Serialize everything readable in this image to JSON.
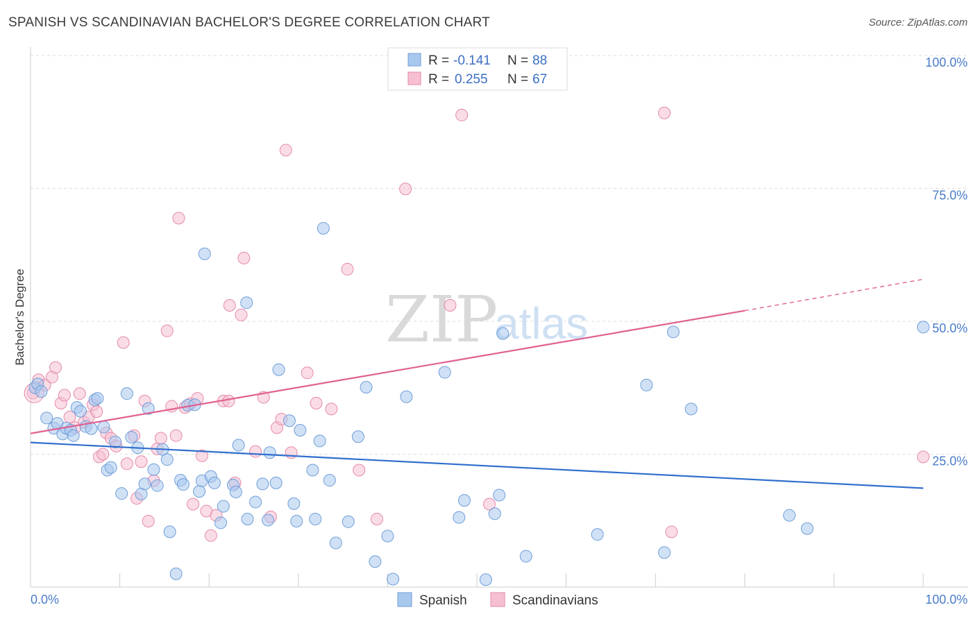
{
  "title": "SPANISH VS SCANDINAVIAN BACHELOR'S DEGREE CORRELATION CHART",
  "source": "Source: ZipAtlas.com",
  "colors": {
    "spanish_fill": "#a9c8ee",
    "spanish_stroke": "#6f9ed8",
    "spanish_line": "#2f6fce",
    "scand_fill": "#f6bfd2",
    "scand_stroke": "#e48aaa",
    "scand_line": "#e06090",
    "tick_text": "#4a7cc9",
    "grid": "#dcdcdc"
  },
  "legend": {
    "rows": [
      {
        "r_label": "R =",
        "r_value": "-0.141",
        "n_label": "N =",
        "n_value": "88"
      },
      {
        "r_label": "R =",
        "r_value": "0.255",
        "n_label": "N =",
        "n_value": "67"
      }
    ]
  },
  "watermark": {
    "zip": "ZIP",
    "atlas": "atlas"
  },
  "chart_data": {
    "type": "scatter",
    "xlabel": "",
    "ylabel": "Bachelor's Degree",
    "xlim": [
      0,
      100
    ],
    "ylim": [
      0,
      100
    ],
    "x_tick_labels": [
      "0.0%",
      "100.0%"
    ],
    "y_tick_labels": [
      "25.0%",
      "50.0%",
      "75.0%",
      "100.0%"
    ],
    "y_tick_values": [
      25,
      50,
      75,
      100
    ],
    "grid": true,
    "legend_position": "top-center",
    "series": [
      {
        "name": "Spanish",
        "trend": {
          "x0": 0,
          "y0": 27.2,
          "x1": 100,
          "y1": 18.6
        },
        "points": [
          [
            0.5,
            37.5
          ],
          [
            0.8,
            38.2
          ],
          [
            1.2,
            36.8
          ],
          [
            1.8,
            31.8
          ],
          [
            2.6,
            29.9
          ],
          [
            3.0,
            30.8
          ],
          [
            3.6,
            28.8
          ],
          [
            4.0,
            29.9
          ],
          [
            4.5,
            29.5
          ],
          [
            4.8,
            28.5
          ],
          [
            5.2,
            33.8
          ],
          [
            5.6,
            33.1
          ],
          [
            6.2,
            30.2
          ],
          [
            6.8,
            29.8
          ],
          [
            7.2,
            35.2
          ],
          [
            7.5,
            35.5
          ],
          [
            8.2,
            30.1
          ],
          [
            8.6,
            22.0
          ],
          [
            9.0,
            22.5
          ],
          [
            9.5,
            27.3
          ],
          [
            10.2,
            17.6
          ],
          [
            10.8,
            36.4
          ],
          [
            11.3,
            28.2
          ],
          [
            12.0,
            26.2
          ],
          [
            12.4,
            17.5
          ],
          [
            12.8,
            19.4
          ],
          [
            13.2,
            33.6
          ],
          [
            13.8,
            22.1
          ],
          [
            14.2,
            19.1
          ],
          [
            14.8,
            25.9
          ],
          [
            15.3,
            24.0
          ],
          [
            15.6,
            10.4
          ],
          [
            16.3,
            2.5
          ],
          [
            16.8,
            20.1
          ],
          [
            17.1,
            19.3
          ],
          [
            17.6,
            34.2
          ],
          [
            18.4,
            34.3
          ],
          [
            18.9,
            18.0
          ],
          [
            19.2,
            20.0
          ],
          [
            19.5,
            62.7
          ],
          [
            20.2,
            20.8
          ],
          [
            20.6,
            19.6
          ],
          [
            21.3,
            12.1
          ],
          [
            21.6,
            15.2
          ],
          [
            22.7,
            19.2
          ],
          [
            23.0,
            17.9
          ],
          [
            23.3,
            26.7
          ],
          [
            24.2,
            53.5
          ],
          [
            24.3,
            12.8
          ],
          [
            25.2,
            16.0
          ],
          [
            26.0,
            19.4
          ],
          [
            26.8,
            25.3
          ],
          [
            26.6,
            12.6
          ],
          [
            27.5,
            19.6
          ],
          [
            27.8,
            40.9
          ],
          [
            29.0,
            31.3
          ],
          [
            29.5,
            15.7
          ],
          [
            29.8,
            12.4
          ],
          [
            30.2,
            29.5
          ],
          [
            31.6,
            22.0
          ],
          [
            31.9,
            12.8
          ],
          [
            32.4,
            27.5
          ],
          [
            32.8,
            67.5
          ],
          [
            33.5,
            20.1
          ],
          [
            34.2,
            8.3
          ],
          [
            35.6,
            12.3
          ],
          [
            36.7,
            28.3
          ],
          [
            37.6,
            37.6
          ],
          [
            38.6,
            4.8
          ],
          [
            40.0,
            9.6
          ],
          [
            40.6,
            1.5
          ],
          [
            42.1,
            35.8
          ],
          [
            46.4,
            40.4
          ],
          [
            48.0,
            13.1
          ],
          [
            48.6,
            16.3
          ],
          [
            51.0,
            1.4
          ],
          [
            52.0,
            13.8
          ],
          [
            52.5,
            17.3
          ],
          [
            52.9,
            47.7
          ],
          [
            55.5,
            5.8
          ],
          [
            63.5,
            9.9
          ],
          [
            69.0,
            38.0
          ],
          [
            71.0,
            6.5
          ],
          [
            72.0,
            48.0
          ],
          [
            74.0,
            33.5
          ],
          [
            85.0,
            13.5
          ],
          [
            87.0,
            11.0
          ],
          [
            100.0,
            48.9
          ]
        ]
      },
      {
        "name": "Scandinavians",
        "trend": {
          "x0": 0,
          "y0": 28.9,
          "x1": 80,
          "y1": 52.0
        },
        "trend_dashed": {
          "x0": 80,
          "y0": 52.0,
          "x1": 100,
          "y1": 57.9
        },
        "points": [
          [
            0.3,
            36.5
          ],
          [
            0.9,
            39.0
          ],
          [
            1.6,
            38.0
          ],
          [
            2.4,
            39.5
          ],
          [
            2.8,
            41.3
          ],
          [
            3.4,
            34.6
          ],
          [
            3.8,
            36.1
          ],
          [
            4.4,
            32.0
          ],
          [
            5.0,
            30.0
          ],
          [
            5.5,
            36.4
          ],
          [
            6.0,
            31.0
          ],
          [
            6.5,
            32.0
          ],
          [
            7.0,
            34.3
          ],
          [
            7.4,
            33.0
          ],
          [
            7.7,
            24.5
          ],
          [
            8.1,
            25.0
          ],
          [
            8.5,
            29.0
          ],
          [
            9.0,
            28.0
          ],
          [
            9.6,
            26.5
          ],
          [
            10.4,
            46.0
          ],
          [
            10.8,
            23.2
          ],
          [
            11.6,
            28.5
          ],
          [
            11.9,
            16.7
          ],
          [
            12.4,
            23.6
          ],
          [
            12.8,
            35.0
          ],
          [
            13.2,
            12.4
          ],
          [
            13.8,
            20.0
          ],
          [
            14.2,
            26.0
          ],
          [
            14.6,
            28.0
          ],
          [
            15.3,
            48.2
          ],
          [
            15.8,
            34.0
          ],
          [
            16.3,
            28.5
          ],
          [
            16.6,
            69.4
          ],
          [
            17.3,
            33.8
          ],
          [
            17.9,
            34.5
          ],
          [
            18.2,
            15.6
          ],
          [
            18.7,
            35.5
          ],
          [
            19.2,
            24.7
          ],
          [
            19.7,
            14.3
          ],
          [
            20.2,
            9.7
          ],
          [
            20.8,
            13.5
          ],
          [
            21.6,
            35.0
          ],
          [
            22.2,
            35.0
          ],
          [
            22.3,
            53.0
          ],
          [
            22.9,
            19.6
          ],
          [
            23.6,
            51.2
          ],
          [
            23.9,
            61.9
          ],
          [
            25.2,
            25.5
          ],
          [
            26.1,
            35.7
          ],
          [
            26.9,
            13.2
          ],
          [
            27.6,
            30.0
          ],
          [
            28.1,
            31.6
          ],
          [
            28.6,
            82.2
          ],
          [
            29.2,
            25.3
          ],
          [
            31.0,
            40.3
          ],
          [
            32.0,
            34.6
          ],
          [
            33.7,
            33.5
          ],
          [
            35.5,
            59.8
          ],
          [
            36.8,
            22.0
          ],
          [
            38.8,
            12.8
          ],
          [
            42.0,
            74.9
          ],
          [
            47.0,
            53.0
          ],
          [
            48.3,
            88.8
          ],
          [
            51.4,
            15.6
          ],
          [
            71.0,
            89.2
          ],
          [
            71.8,
            10.4
          ],
          [
            100.0,
            24.5
          ]
        ]
      }
    ]
  }
}
